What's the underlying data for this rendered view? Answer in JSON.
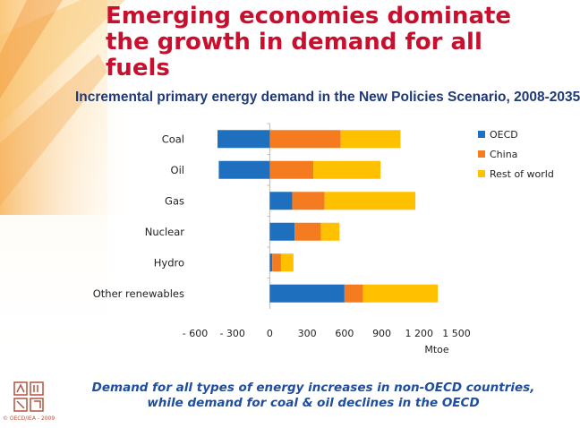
{
  "title_lines": [
    "Emerging economies dominate",
    "the growth in demand for all",
    "fuels"
  ],
  "subtitle": "Incremental primary energy demand in the New Policies Scenario, 2008-2035",
  "caption_lines": [
    "Demand for all types of energy increases in non-OECD countries,",
    "while demand for coal & oil declines in the OECD"
  ],
  "copyright": "© OECD/IEA - 2009",
  "colors": {
    "oecd": "#1f6fbf",
    "china": "#f47b20",
    "rest": "#ffc000",
    "title": "#c8102e",
    "caption": "#1f4ea0"
  },
  "chart_data": {
    "type": "bar",
    "orientation": "horizontal",
    "stacked": true,
    "categories": [
      "Coal",
      "Oil",
      "Gas",
      "Nuclear",
      "Hydro",
      "Other renewables"
    ],
    "series": [
      {
        "name": "OECD",
        "values": [
          -420,
          -410,
          180,
          200,
          20,
          600
        ]
      },
      {
        "name": "China",
        "values": [
          570,
          350,
          260,
          210,
          70,
          150
        ]
      },
      {
        "name": "Rest of world",
        "values": [
          480,
          540,
          730,
          150,
          100,
          600
        ]
      }
    ],
    "xlim": [
      -600,
      1500
    ],
    "xticks": [
      -600,
      -300,
      0,
      300,
      600,
      900,
      1200,
      1500
    ],
    "xtick_labels": [
      "- 600",
      "- 300",
      "0",
      "300",
      "600",
      "900",
      "1 200",
      "1 500"
    ],
    "xlabel": "Mtoe",
    "legend_position": "right"
  }
}
